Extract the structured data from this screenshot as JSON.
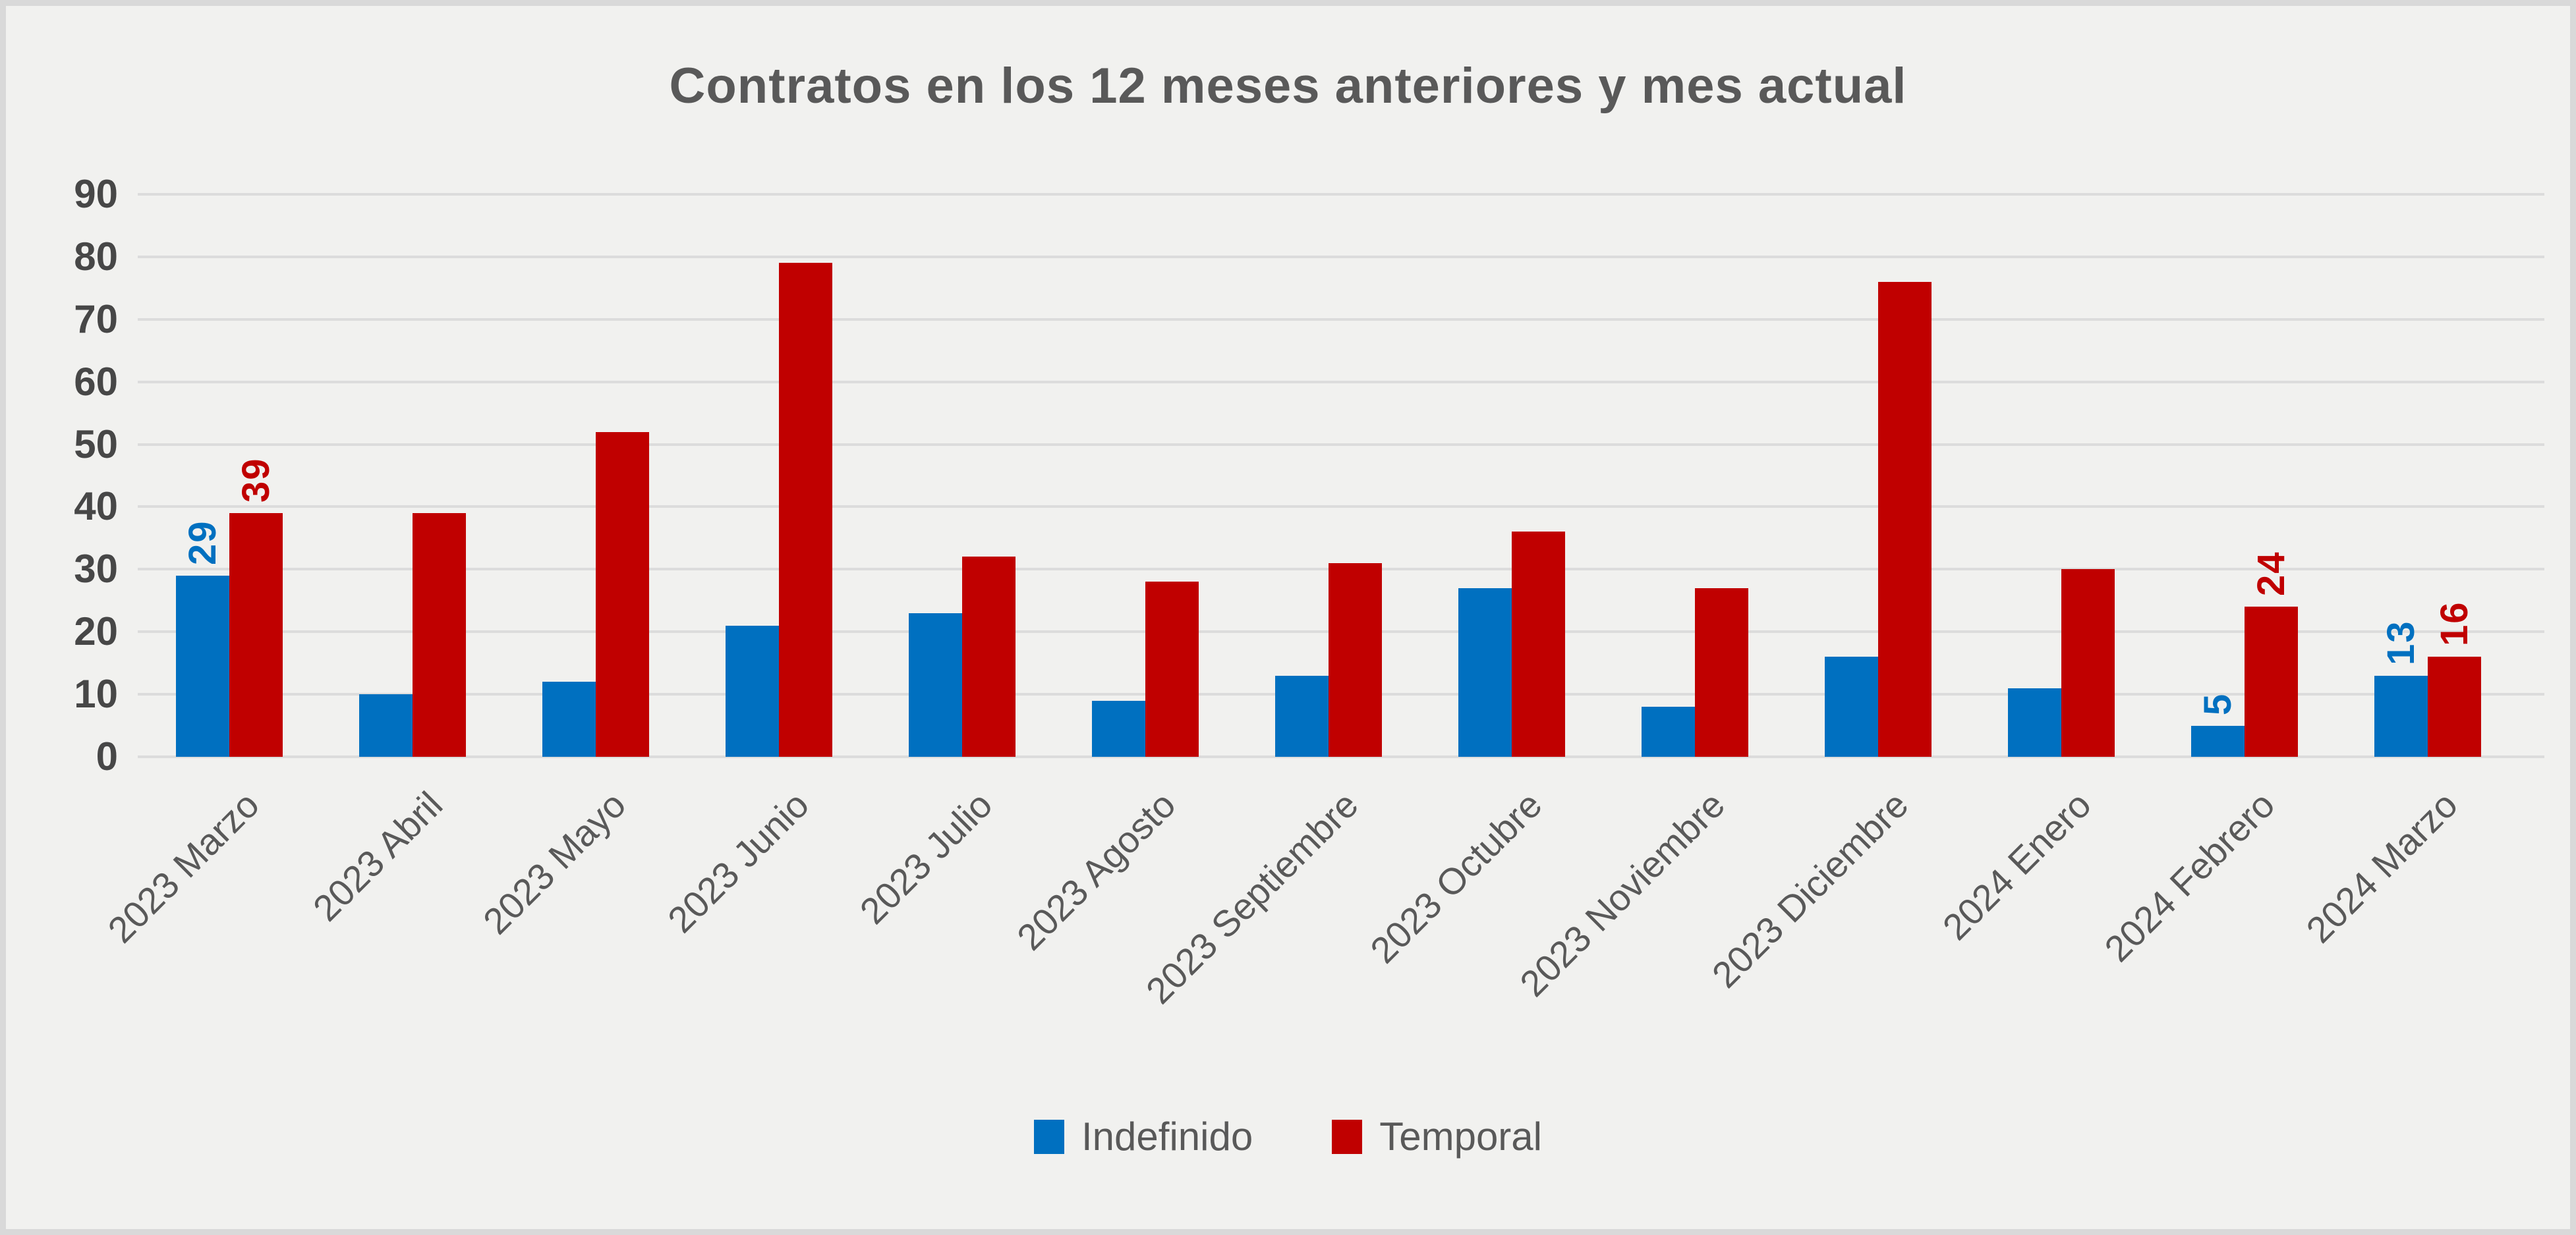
{
  "chart_data": {
    "type": "bar",
    "title": "Contratos en los 12 meses anteriores y mes actual",
    "categories": [
      "2023 Marzo",
      "2023 Abril",
      "2023 Mayo",
      "2023 Junio",
      "2023 Julio",
      "2023 Agosto",
      "2023 Septiembre",
      "2023 Octubre",
      "2023 Noviembre",
      "2023 Diciembre",
      "2024 Enero",
      "2024 Febrero",
      "2024 Marzo"
    ],
    "series": [
      {
        "name": "Indefinido",
        "color": "#0070C0",
        "values": [
          29,
          10,
          12,
          21,
          23,
          9,
          13,
          27,
          8,
          16,
          11,
          5,
          13
        ]
      },
      {
        "name": "Temporal",
        "color": "#C00000",
        "values": [
          39,
          39,
          52,
          79,
          32,
          28,
          31,
          36,
          27,
          76,
          30,
          24,
          16
        ]
      }
    ],
    "data_labels_shown_at_category_indexes": [
      0,
      11,
      12
    ],
    "ylim": [
      0,
      90
    ],
    "ytick_step": 10,
    "yticks": [
      "0",
      "10",
      "20",
      "30",
      "40",
      "50",
      "60",
      "70",
      "80",
      "90"
    ],
    "grid": "horizontal",
    "legend_position": "bottom",
    "xlabel": "",
    "ylabel": ""
  },
  "colors": {
    "background": "#f1f1ef",
    "frame_border": "#d9d9d9",
    "gridline": "#dcdcdc",
    "title_text": "#595959",
    "axis_text": "#595959",
    "ytick_text": "#474747"
  }
}
